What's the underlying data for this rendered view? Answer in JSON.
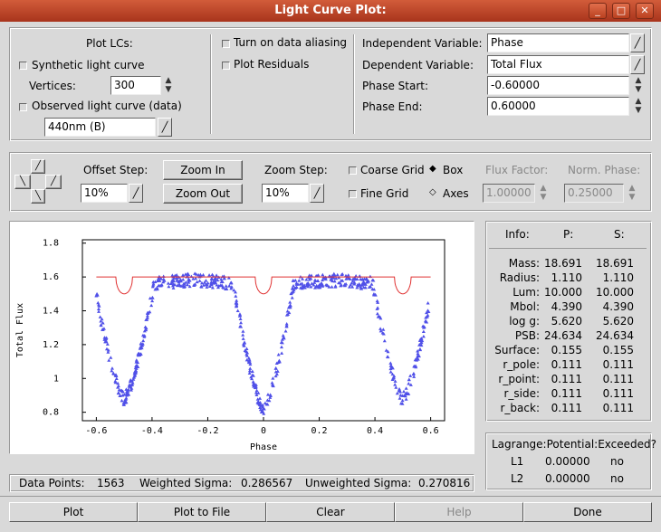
{
  "window": {
    "title": "Light Curve Plot:",
    "controls": [
      "minimize-icon",
      "maximize-icon",
      "close-icon"
    ]
  },
  "plot_lcs": {
    "heading": "Plot LCs:",
    "synthetic_label": "Synthetic light curve",
    "vertices_label": "Vertices:",
    "vertices_value": "300",
    "observed_label": "Observed light curve (data)",
    "dataset_value": "440nm (B)"
  },
  "options": {
    "aliasing_label": "Turn on data aliasing",
    "residuals_label": "Plot Residuals"
  },
  "variables": {
    "independent_label": "Independent Variable:",
    "independent_value": "Phase",
    "dependent_label": "Dependent Variable:",
    "dependent_value": "Total Flux",
    "phase_start_label": "Phase Start:",
    "phase_start_value": "-0.60000",
    "phase_end_label": "Phase End:",
    "phase_end_value": "0.60000"
  },
  "nav": {
    "offset_step_label": "Offset Step:",
    "offset_step_value": "10%",
    "zoom_in_label": "Zoom In",
    "zoom_out_label": "Zoom Out",
    "zoom_step_label": "Zoom Step:",
    "zoom_step_value": "10%",
    "coarse_grid_label": "Coarse Grid",
    "fine_grid_label": "Fine Grid",
    "box_label": "Box",
    "axes_label": "Axes",
    "flux_factor_label": "Flux Factor:",
    "flux_factor_value": "1.00000",
    "norm_phase_label": "Norm. Phase:",
    "norm_phase_value": "0.25000"
  },
  "info": {
    "header": [
      "Info:",
      "P:",
      "S:"
    ],
    "rows": [
      {
        "label": "Mass:",
        "p": "18.691",
        "s": "18.691"
      },
      {
        "label": "Radius:",
        "p": "1.110",
        "s": "1.110"
      },
      {
        "label": "Lum:",
        "p": "10.000",
        "s": "10.000"
      },
      {
        "label": "Mbol:",
        "p": "4.390",
        "s": "4.390"
      },
      {
        "label": "log g:",
        "p": "5.620",
        "s": "5.620"
      },
      {
        "label": "PSB:",
        "p": "24.634",
        "s": "24.634"
      },
      {
        "label": "Surface:",
        "p": "0.155",
        "s": "0.155"
      },
      {
        "label": "r_pole:",
        "p": "0.111",
        "s": "0.111"
      },
      {
        "label": "r_point:",
        "p": "0.111",
        "s": "0.111"
      },
      {
        "label": "r_side:",
        "p": "0.111",
        "s": "0.111"
      },
      {
        "label": "r_back:",
        "p": "0.111",
        "s": "0.111"
      }
    ]
  },
  "lagrange": {
    "header": "Lagrange:Potential:Exceeded?",
    "rows": [
      {
        "label": "L1",
        "potential": "0.00000",
        "exceeded": "no"
      },
      {
        "label": "L2",
        "potential": "0.00000",
        "exceeded": "no"
      }
    ]
  },
  "stats": {
    "data_points_label": "Data Points:",
    "data_points_value": "1563",
    "weighted_label": "Weighted Sigma:",
    "weighted_value": "0.286567",
    "unweighted_label": "Unweighted Sigma:",
    "unweighted_value": "0.270816"
  },
  "buttons": {
    "plot": "Plot",
    "plot_to_file": "Plot to File",
    "clear": "Clear",
    "help": "Help",
    "done": "Done"
  },
  "colors": {
    "titlebar": "#b9401f",
    "synthetic_curve": "#e03030",
    "observed_points": "#5050e8"
  },
  "chart_data": {
    "type": "scatter",
    "xlabel": "Phase",
    "ylabel": "Total Flux",
    "xlim": [
      -0.65,
      0.65
    ],
    "ylim": [
      0.75,
      1.82
    ],
    "x_ticks": [
      "-0.6",
      "-0.4",
      "-0.2",
      "0",
      "0.2",
      "0.4",
      "0.6"
    ],
    "x_tick_values": [
      -0.6,
      -0.4,
      -0.2,
      0,
      0.2,
      0.4,
      0.6
    ],
    "y_ticks": [
      "0.8",
      "1",
      "1.2",
      "1.4",
      "1.6",
      "1.8"
    ],
    "y_tick_values": [
      0.8,
      1.0,
      1.2,
      1.4,
      1.6,
      1.8
    ],
    "synthetic": {
      "baseline": 1.6,
      "eclipses": [
        {
          "phase": -0.5,
          "min": 1.5
        },
        {
          "phase": 0.0,
          "min": 1.5
        },
        {
          "phase": 0.5,
          "min": 1.5
        }
      ]
    },
    "observed": {
      "x_range": [
        -0.6,
        0.6
      ],
      "max_flux": 1.58,
      "eclipses": [
        {
          "phase": -0.5,
          "min": 0.88
        },
        {
          "phase": 0.0,
          "min": 0.82
        },
        {
          "phase": 0.5,
          "min": 0.88
        }
      ]
    }
  }
}
